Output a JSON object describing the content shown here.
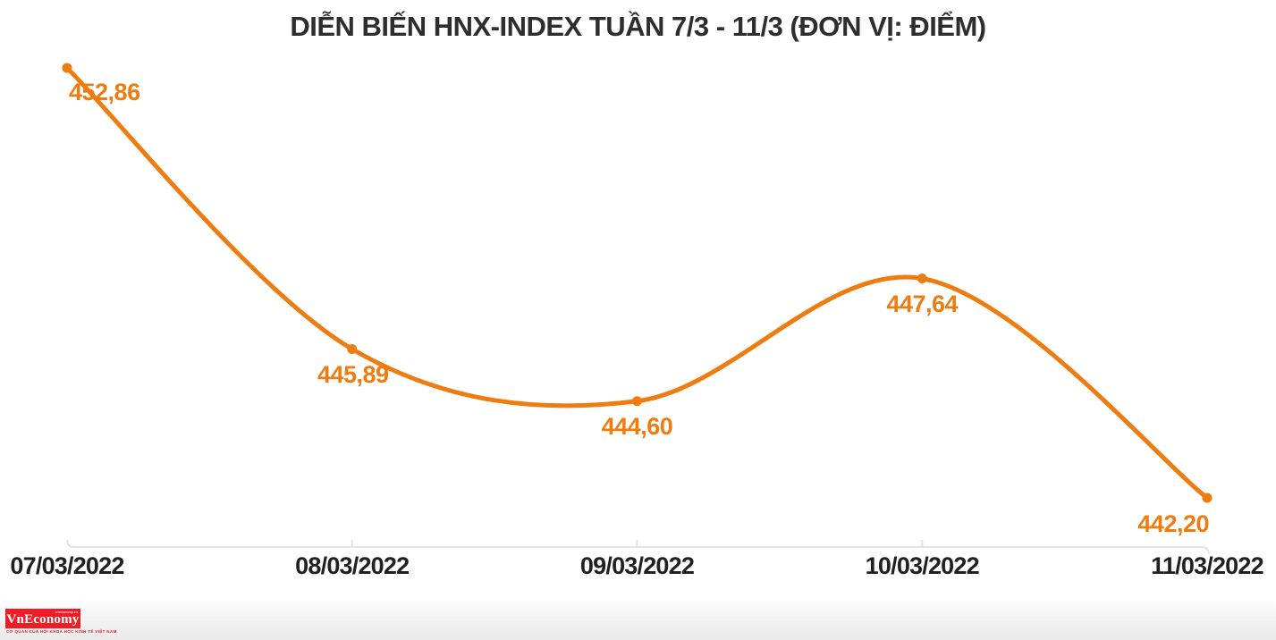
{
  "title": "DIỄN BIẾN HNX-INDEX TUẦN 7/3 - 11/3 (ĐƠN VỊ: ĐIỂM)",
  "colors": {
    "line": "#ee7c10",
    "title_text": "#2e2e2e",
    "axis_text": "#212121",
    "axis_line": "#e4e4e4",
    "logo_red": "#ee1c25"
  },
  "chart_data": {
    "type": "line",
    "title": "DIỄN BIẾN HNX-INDEX TUẦN 7/3 - 11/3 (ĐƠN VỊ: ĐIỂM)",
    "unit": "ĐIỂM",
    "categories": [
      "07/03/2022",
      "08/03/2022",
      "09/03/2022",
      "10/03/2022",
      "11/03/2022"
    ],
    "values": [
      452.86,
      445.89,
      444.6,
      447.64,
      442.2
    ],
    "point_labels": [
      "452,86",
      "445,89",
      "444,60",
      "447,64",
      "442,20"
    ],
    "series_name": "HNX-Index",
    "ylim": [
      442.2,
      452.86
    ],
    "grid": false,
    "legend": "none",
    "marker": "circle",
    "line_style": "smoothed"
  },
  "footer": {
    "logo_text": "VnEconomy",
    "logo_top_text": "vneconomy.vn",
    "logo_tagline": "CƠ QUAN CỦA HỘI KHOA HỌC KINH TẾ VIỆT NAM"
  }
}
